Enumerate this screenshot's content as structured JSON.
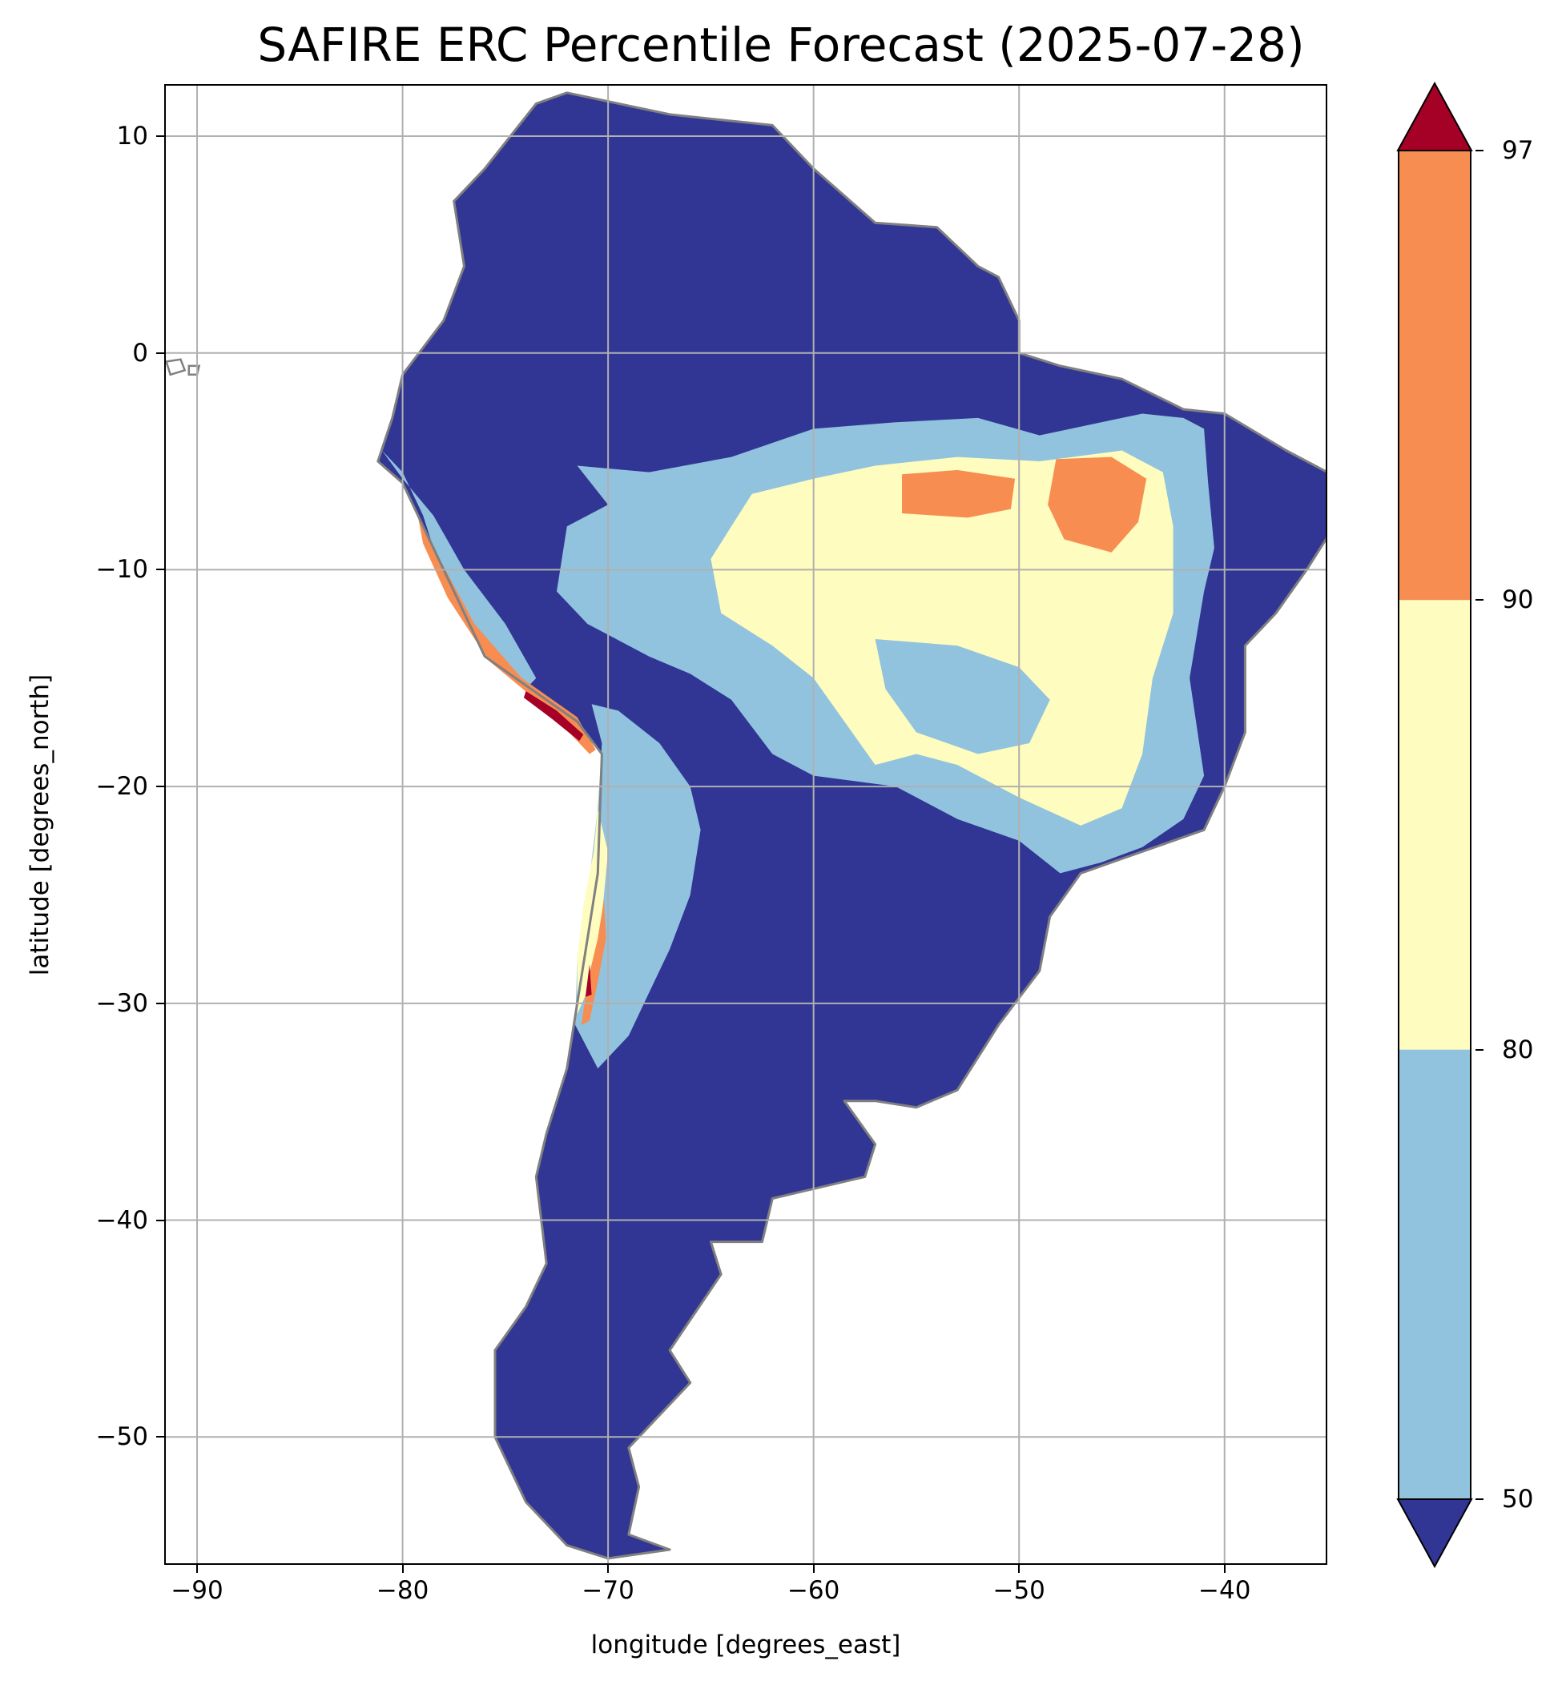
{
  "title": "SAFIRE ERC Percentile Forecast (2025-07-28)",
  "chart_data": {
    "type": "heatmap",
    "title": "SAFIRE ERC Percentile Forecast (2025-07-28)",
    "xlabel": "longitude [degrees_east]",
    "ylabel": "latitude [degrees_north]",
    "xlim": [
      -91.6,
      -35.0
    ],
    "ylim": [
      -55.9,
      12.4
    ],
    "x_ticks": [
      -90,
      -80,
      -70,
      -60,
      -50,
      -40
    ],
    "y_ticks": [
      10,
      0,
      -10,
      -20,
      -30,
      -40,
      -50
    ],
    "x_tick_labels": [
      "−90",
      "−80",
      "−70",
      "−60",
      "−50",
      "−40"
    ],
    "y_tick_labels": [
      "10",
      "0",
      "−10",
      "−20",
      "−30",
      "−40",
      "−50"
    ],
    "grid": true,
    "colorbar": {
      "ticks": [
        50,
        80,
        90,
        97
      ],
      "tick_labels": [
        "50",
        "80",
        "90",
        "97"
      ],
      "extend": "both",
      "levels": [
        {
          "range": "<50",
          "color": "#313695"
        },
        {
          "range": "50-80",
          "color": "#91c3de"
        },
        {
          "range": "80-90",
          "color": "#fefcbe"
        },
        {
          "range": "90-97",
          "color": "#f88d52"
        },
        {
          "range": ">97",
          "color": "#a50026"
        }
      ]
    },
    "regions": [
      {
        "class": "<50",
        "color": "#313695",
        "lonlat": [
          [
            -72,
            12
          ],
          [
            -67,
            11
          ],
          [
            -62,
            10.5
          ],
          [
            -60,
            8.5
          ],
          [
            -57,
            6
          ],
          [
            -54,
            5.8
          ],
          [
            -52,
            4
          ],
          [
            -51,
            3.5
          ],
          [
            -50,
            1.5
          ],
          [
            -50,
            0
          ],
          [
            -48,
            -0.6
          ],
          [
            -45,
            -1.2
          ],
          [
            -42,
            -2.6
          ],
          [
            -40,
            -2.8
          ],
          [
            -37,
            -4.5
          ],
          [
            -35,
            -5.5
          ],
          [
            -35,
            -8.5
          ],
          [
            -36,
            -10
          ],
          [
            -37.5,
            -12
          ],
          [
            -39,
            -13.5
          ],
          [
            -39,
            -17.5
          ],
          [
            -40,
            -20
          ],
          [
            -41,
            -22
          ],
          [
            -44,
            -23
          ],
          [
            -47,
            -24
          ],
          [
            -48.5,
            -26
          ],
          [
            -49,
            -28.5
          ],
          [
            -51,
            -31
          ],
          [
            -53,
            -34
          ],
          [
            -55,
            -34.8
          ],
          [
            -57,
            -34.5
          ],
          [
            -58.5,
            -34.5
          ],
          [
            -57,
            -36.5
          ],
          [
            -57.5,
            -38
          ],
          [
            -62,
            -39
          ],
          [
            -62.5,
            -41
          ],
          [
            -65,
            -41
          ],
          [
            -64.5,
            -42.5
          ],
          [
            -67,
            -46
          ],
          [
            -66,
            -47.5
          ],
          [
            -69,
            -50.5
          ],
          [
            -68.5,
            -52.3
          ],
          [
            -69,
            -54.5
          ],
          [
            -67,
            -55.2
          ],
          [
            -70,
            -55.6
          ],
          [
            -72,
            -55
          ],
          [
            -74,
            -53
          ],
          [
            -75.5,
            -50
          ],
          [
            -75.5,
            -46
          ],
          [
            -74,
            -44
          ],
          [
            -73,
            -42
          ],
          [
            -73.5,
            -38
          ],
          [
            -73,
            -36
          ],
          [
            -72,
            -33
          ],
          [
            -71.5,
            -30
          ],
          [
            -71,
            -27
          ],
          [
            -70.5,
            -24
          ],
          [
            -70.3,
            -18.5
          ],
          [
            -71.5,
            -17
          ],
          [
            -76,
            -14
          ],
          [
            -78.5,
            -9
          ],
          [
            -80,
            -6
          ],
          [
            -81.2,
            -5
          ],
          [
            -80.5,
            -3
          ],
          [
            -80,
            -1
          ],
          [
            -78,
            1.5
          ],
          [
            -77,
            4
          ],
          [
            -77.5,
            7
          ],
          [
            -76,
            8.5
          ],
          [
            -73.5,
            11.5
          ]
        ]
      },
      {
        "class": "50-80",
        "color": "#91c3de",
        "lonlat": [
          [
            -71.5,
            -5.2
          ],
          [
            -68,
            -5.5
          ],
          [
            -64,
            -4.8
          ],
          [
            -60,
            -3.5
          ],
          [
            -56,
            -3.2
          ],
          [
            -52,
            -3
          ],
          [
            -49,
            -3.8
          ],
          [
            -44,
            -2.8
          ],
          [
            -42,
            -3
          ],
          [
            -41,
            -3.5
          ],
          [
            -40.8,
            -6
          ],
          [
            -40.5,
            -9
          ],
          [
            -41,
            -11
          ],
          [
            -41.7,
            -15
          ],
          [
            -41,
            -19.5
          ],
          [
            -42,
            -21.5
          ],
          [
            -44,
            -22.8
          ],
          [
            -46,
            -23.5
          ],
          [
            -48,
            -24
          ],
          [
            -50,
            -22.5
          ],
          [
            -53,
            -21.5
          ],
          [
            -56,
            -20
          ],
          [
            -60,
            -19.5
          ],
          [
            -62,
            -18.5
          ],
          [
            -64,
            -16
          ],
          [
            -66,
            -14.8
          ],
          [
            -68,
            -14
          ],
          [
            -71,
            -12.5
          ],
          [
            -72.5,
            -11
          ],
          [
            -72,
            -8
          ],
          [
            -70,
            -7
          ]
        ]
      },
      {
        "class": "50-80",
        "color": "#91c3de",
        "lonlat": [
          [
            -70.8,
            -16.2
          ],
          [
            -69.5,
            -16.5
          ],
          [
            -67.5,
            -18
          ],
          [
            -66,
            -20
          ],
          [
            -65.5,
            -22
          ],
          [
            -66,
            -25
          ],
          [
            -67,
            -27.5
          ],
          [
            -68,
            -29.5
          ],
          [
            -69,
            -31.5
          ],
          [
            -70.5,
            -33
          ],
          [
            -71.6,
            -31
          ],
          [
            -71.5,
            -28
          ],
          [
            -71,
            -25
          ],
          [
            -70.5,
            -21
          ],
          [
            -70.3,
            -18
          ]
        ]
      },
      {
        "class": "50-80",
        "color": "#91c3de",
        "lonlat": [
          [
            -81,
            -4.5
          ],
          [
            -80,
            -5.5
          ],
          [
            -79,
            -7.5
          ],
          [
            -78.5,
            -9
          ],
          [
            -77.5,
            -11
          ],
          [
            -76,
            -13.5
          ],
          [
            -74,
            -15.5
          ],
          [
            -73.5,
            -15
          ],
          [
            -75,
            -12.5
          ],
          [
            -77,
            -10
          ],
          [
            -78.5,
            -7.5
          ],
          [
            -80,
            -5.8
          ]
        ]
      },
      {
        "class": "80-90",
        "color": "#fefcbe",
        "lonlat": [
          [
            -63,
            -6.5
          ],
          [
            -60,
            -5.8
          ],
          [
            -57,
            -5.2
          ],
          [
            -53,
            -4.8
          ],
          [
            -49,
            -5
          ],
          [
            -45,
            -4.5
          ],
          [
            -43,
            -5.5
          ],
          [
            -42.5,
            -8
          ],
          [
            -42.5,
            -12
          ],
          [
            -43.5,
            -15
          ],
          [
            -44,
            -18.5
          ],
          [
            -45,
            -21
          ],
          [
            -47,
            -21.8
          ],
          [
            -50,
            -20.5
          ],
          [
            -53,
            -19
          ],
          [
            -55,
            -18.5
          ],
          [
            -57,
            -19
          ],
          [
            -58.5,
            -17
          ],
          [
            -60,
            -15
          ],
          [
            -62,
            -13.5
          ],
          [
            -64.5,
            -12
          ],
          [
            -65,
            -9.5
          ],
          [
            -64,
            -8
          ]
        ]
      },
      {
        "class": "50-80",
        "color": "#91c3de",
        "lonlat": [
          [
            -57,
            -13.2
          ],
          [
            -53,
            -13.5
          ],
          [
            -50,
            -14.5
          ],
          [
            -48.5,
            -16
          ],
          [
            -49.5,
            -18
          ],
          [
            -52,
            -18.5
          ],
          [
            -55,
            -17.5
          ],
          [
            -56.5,
            -15.5
          ]
        ]
      },
      {
        "class": "80-90",
        "color": "#fefcbe",
        "lonlat": [
          [
            -70.9,
            -19.5
          ],
          [
            -70.5,
            -21
          ],
          [
            -70.7,
            -23
          ],
          [
            -71.2,
            -25.5
          ],
          [
            -71.5,
            -28
          ],
          [
            -71.5,
            -30.5
          ],
          [
            -70.8,
            -29
          ],
          [
            -70.3,
            -26
          ],
          [
            -70,
            -23
          ]
        ]
      },
      {
        "class": "90-97",
        "color": "#f88d52",
        "lonlat": [
          [
            -55.7,
            -5.6
          ],
          [
            -53,
            -5.4
          ],
          [
            -50.2,
            -5.8
          ],
          [
            -50.4,
            -7.2
          ],
          [
            -52.5,
            -7.6
          ],
          [
            -55.7,
            -7.4
          ]
        ]
      },
      {
        "class": "90-97",
        "color": "#f88d52",
        "lonlat": [
          [
            -48.2,
            -4.9
          ],
          [
            -45.5,
            -4.8
          ],
          [
            -43.8,
            -5.8
          ],
          [
            -44.2,
            -7.8
          ],
          [
            -45.5,
            -9.2
          ],
          [
            -47.8,
            -8.6
          ],
          [
            -48.6,
            -7
          ]
        ]
      },
      {
        "class": "90-97",
        "color": "#f88d52",
        "lonlat": [
          [
            -79.3,
            -7.3
          ],
          [
            -78.2,
            -9.5
          ],
          [
            -76.5,
            -12.5
          ],
          [
            -74.2,
            -15
          ],
          [
            -71.5,
            -16.8
          ],
          [
            -70.6,
            -18.3
          ],
          [
            -70.9,
            -18.5
          ],
          [
            -73,
            -16.4
          ],
          [
            -75.8,
            -14.2
          ],
          [
            -77.8,
            -11.3
          ],
          [
            -79,
            -8.8
          ]
        ]
      },
      {
        "class": ">97",
        "color": "#a50026",
        "lonlat": [
          [
            -74,
            -15.6
          ],
          [
            -72.5,
            -16.5
          ],
          [
            -71.2,
            -17.6
          ],
          [
            -71.4,
            -17.9
          ],
          [
            -72.7,
            -16.9
          ],
          [
            -74.1,
            -15.9
          ]
        ]
      },
      {
        "class": "90-97",
        "color": "#f88d52",
        "lonlat": [
          [
            -70.2,
            -25.2
          ],
          [
            -70.5,
            -27
          ],
          [
            -71,
            -29
          ],
          [
            -71.3,
            -31
          ],
          [
            -70.9,
            -30.8
          ],
          [
            -70.5,
            -29
          ],
          [
            -70.1,
            -27
          ]
        ]
      },
      {
        "class": ">97",
        "color": "#a50026",
        "lonlat": [
          [
            -70.9,
            -28.2
          ],
          [
            -71.1,
            -29.7
          ],
          [
            -70.8,
            -29.6
          ]
        ]
      }
    ],
    "islands": [
      {
        "lonlat": [
          [
            -91.5,
            -0.4
          ],
          [
            -90.8,
            -0.3
          ],
          [
            -90.6,
            -0.8
          ],
          [
            -91.3,
            -1.0
          ]
        ]
      },
      {
        "lonlat": [
          [
            -90.4,
            -0.6
          ],
          [
            -89.9,
            -0.6
          ],
          [
            -90.0,
            -1.0
          ],
          [
            -90.4,
            -1.0
          ]
        ]
      }
    ]
  }
}
